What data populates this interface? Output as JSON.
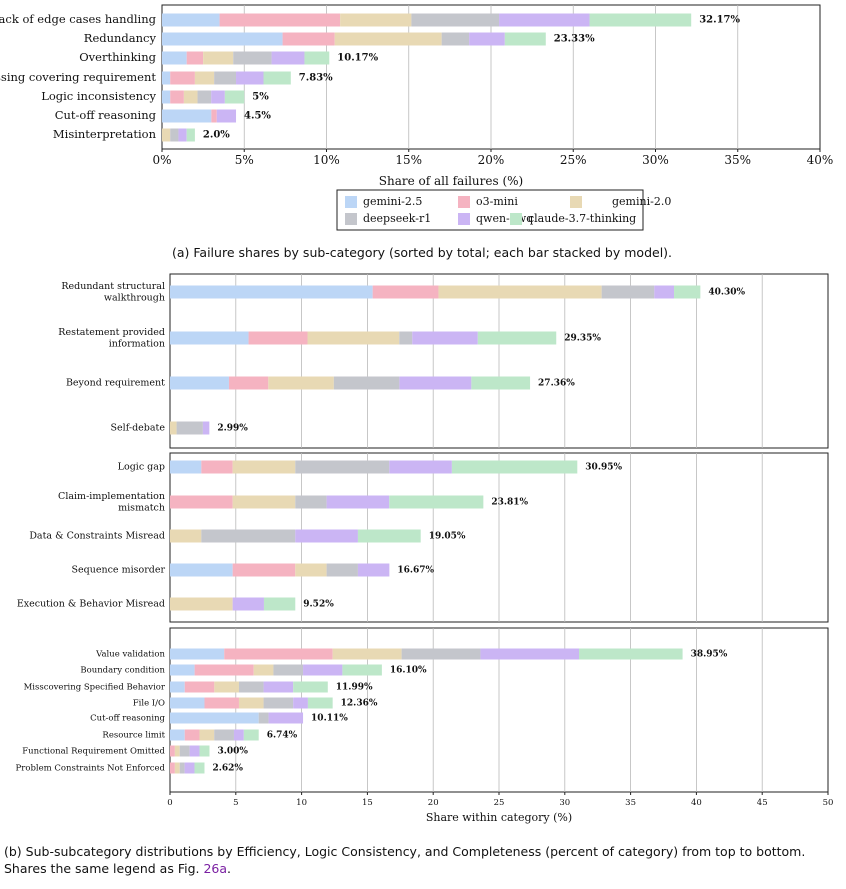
{
  "colors": {
    "gemini-2.5": "#bcd6f6",
    "o3-mini": "#f5b3c1",
    "gemini-2.0": "#e8d9b4",
    "deepseek-r1": "#c4c6cc",
    "qwen-qwq": "#cbb5f4",
    "claude-3.7-thinking": "#bde7c9"
  },
  "legend": {
    "entries": [
      "gemini-2.5",
      "o3-mini",
      "gemini-2.0",
      "deepseek-r1",
      "qwen-qwq",
      "claude-3.7-thinking"
    ]
  },
  "captions": {
    "a": "(a) Failure shares by sub-category (sorted by total; each bar stacked by model).",
    "b_text": "(b) Sub-subcategory distributions by Efficiency, Logic Consistency, and Completeness (percent of category) from top to bottom. Shares the same legend as Fig. ",
    "b_ref": "26a",
    "b_end": "."
  },
  "chart_data": [
    {
      "id": "a",
      "type": "bar",
      "orientation": "horizontal",
      "stacked": true,
      "xlabel": "Share of all failures (%)",
      "xlim": [
        0,
        40
      ],
      "xticks": [
        0,
        5,
        10,
        15,
        20,
        25,
        30,
        35,
        40
      ],
      "xtick_format": "pct",
      "series_names": [
        "gemini-2.5",
        "o3-mini",
        "gemini-2.0",
        "deepseek-r1",
        "qwen-qwq",
        "claude-3.7-thinking"
      ],
      "categories": [
        {
          "label": [
            "Lack of edge cases handling"
          ],
          "values": [
            3.5,
            7.33,
            4.33,
            5.33,
            5.5,
            6.18
          ],
          "total_label": "32.17%"
        },
        {
          "label": [
            "Redundancy"
          ],
          "values": [
            7.33,
            3.17,
            6.5,
            1.67,
            2.17,
            2.49
          ],
          "total_label": "23.33%"
        },
        {
          "label": [
            "Overthinking"
          ],
          "values": [
            1.5,
            1.0,
            1.83,
            2.33,
            2.0,
            1.51
          ],
          "total_label": "10.17%"
        },
        {
          "label": [
            "Missing covering requirement"
          ],
          "values": [
            0.5,
            1.5,
            1.17,
            1.33,
            1.67,
            1.66
          ],
          "total_label": "7.83%"
        },
        {
          "label": [
            "Logic inconsistency"
          ],
          "values": [
            0.5,
            0.83,
            0.83,
            0.83,
            0.83,
            1.18
          ],
          "total_label": "5%"
        },
        {
          "label": [
            "Cut-off reasoning"
          ],
          "values": [
            3.0,
            0.33,
            0.0,
            0.0,
            1.17,
            0.0
          ],
          "total_label": "4.5%"
        },
        {
          "label": [
            "Misinterpretation"
          ],
          "values": [
            0.0,
            0.0,
            0.5,
            0.5,
            0.5,
            0.5
          ],
          "total_label": "2.0%"
        }
      ]
    },
    {
      "id": "b-efficiency",
      "type": "bar",
      "orientation": "horizontal",
      "stacked": true,
      "xlim": [
        0,
        50
      ],
      "categories": [
        {
          "label": [
            "Redundant structural",
            "walkthrough"
          ],
          "values": [
            15.4,
            5.0,
            12.4,
            4.0,
            1.5,
            2.0
          ],
          "total_label": "40.30%"
        },
        {
          "label": [
            "Restatement provided",
            "information"
          ],
          "values": [
            5.97,
            4.48,
            6.97,
            0.99,
            4.98,
            5.96
          ],
          "total_label": "29.35%"
        },
        {
          "label": [
            "Beyond requirement"
          ],
          "values": [
            4.48,
            2.99,
            4.98,
            4.98,
            5.47,
            4.46
          ],
          "total_label": "27.36%"
        },
        {
          "label": [
            "Self-debate"
          ],
          "values": [
            0.0,
            0.0,
            0.5,
            2.0,
            0.49,
            0.0
          ],
          "total_label": "2.99%"
        }
      ]
    },
    {
      "id": "b-logic",
      "type": "bar",
      "orientation": "horizontal",
      "stacked": true,
      "xlim": [
        0,
        50
      ],
      "categories": [
        {
          "label": [
            "Logic gap"
          ],
          "values": [
            2.38,
            2.38,
            4.76,
            7.14,
            4.76,
            9.53
          ],
          "total_label": "30.95%"
        },
        {
          "label": [
            "Claim-implementation",
            "mismatch"
          ],
          "values": [
            0.0,
            4.76,
            4.76,
            2.38,
            4.76,
            7.15
          ],
          "total_label": "23.81%"
        },
        {
          "label": [
            "Data & Constraints Misread"
          ],
          "values": [
            0.0,
            0.0,
            2.38,
            7.14,
            4.76,
            4.77
          ],
          "total_label": "19.05%"
        },
        {
          "label": [
            "Sequence misorder"
          ],
          "values": [
            4.76,
            4.76,
            2.38,
            2.38,
            2.39,
            0.0
          ],
          "total_label": "16.67%"
        },
        {
          "label": [
            "Execution & Behavior Misread"
          ],
          "values": [
            0.0,
            0.0,
            4.76,
            0.0,
            2.38,
            2.38
          ],
          "total_label": "9.52%"
        }
      ]
    },
    {
      "id": "b-completeness",
      "type": "bar",
      "orientation": "horizontal",
      "stacked": true,
      "xlabel": "Share within category (%)",
      "xlim": [
        0,
        50
      ],
      "xticks": [
        0,
        5,
        10,
        15,
        20,
        25,
        30,
        35,
        40,
        45,
        50
      ],
      "categories": [
        {
          "label": [
            "Value validation"
          ],
          "values": [
            4.12,
            8.24,
            5.24,
            5.99,
            7.49,
            7.87
          ],
          "total_label": "38.95%"
        },
        {
          "label": [
            "Boundary condition"
          ],
          "values": [
            1.87,
            4.49,
            1.5,
            2.25,
            2.99,
            3.0
          ],
          "total_label": "16.10%"
        },
        {
          "label": [
            "Misscovering Specified Behavior"
          ],
          "values": [
            1.12,
            2.25,
            1.87,
            1.87,
            2.25,
            2.63
          ],
          "total_label": "11.99%"
        },
        {
          "label": [
            "File I/O"
          ],
          "values": [
            2.62,
            2.62,
            1.87,
            2.25,
            1.12,
            1.88
          ],
          "total_label": "12.36%"
        },
        {
          "label": [
            "Cut-off reasoning"
          ],
          "values": [
            6.74,
            0.0,
            0.0,
            0.75,
            2.62,
            0.0
          ],
          "total_label": "10.11%"
        },
        {
          "label": [
            "Resource limit"
          ],
          "values": [
            1.12,
            1.12,
            1.12,
            1.5,
            0.75,
            1.13
          ],
          "total_label": "6.74%"
        },
        {
          "label": [
            "Functional Requirement Omitted"
          ],
          "values": [
            0.0,
            0.37,
            0.37,
            0.75,
            0.75,
            0.76
          ],
          "total_label": "3.00%"
        },
        {
          "label": [
            "Problem Constraints Not Enforced"
          ],
          "values": [
            0.0,
            0.37,
            0.37,
            0.37,
            0.75,
            0.76
          ],
          "total_label": "2.62%"
        }
      ]
    }
  ]
}
